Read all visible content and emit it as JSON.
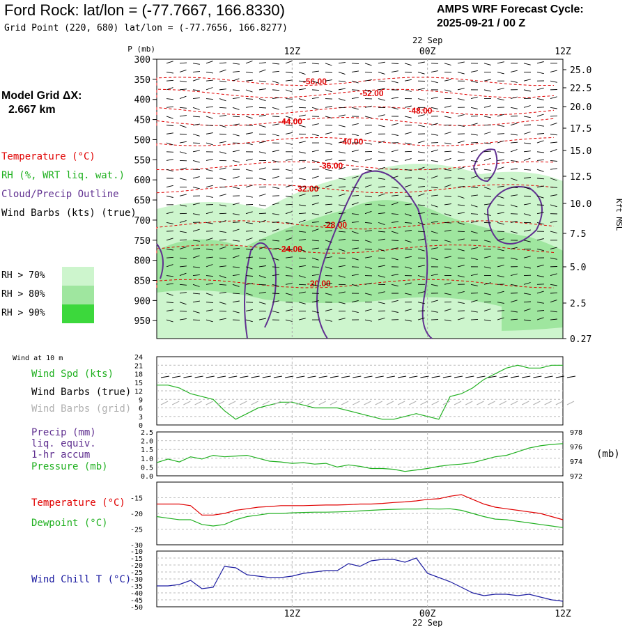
{
  "header": {
    "title": "Ford Rock:  lat/lon = (-77.7667, 166.8330)",
    "grid_point": "Grid Point (220, 680) lat/lon = (-77.7656, 166.8277)",
    "cycle_line1": "AMPS WRF Forecast Cycle:",
    "cycle_line2": "2025-09-21 / 00  Z"
  },
  "sidebar": {
    "model_grid_line1": "Model Grid ΔX:",
    "model_grid_line2": "2.667 km",
    "legend": {
      "temperature": "Temperature (°C)",
      "rh": "RH (%, WRT liq. wat.)",
      "cloud": "Cloud/Precip Outline",
      "wind": "Wind Barbs (kts) (true)"
    },
    "rh_legend": [
      {
        "label": "RH > 70%",
        "color": "#cdf5cd"
      },
      {
        "label": "RH > 80%",
        "color": "#9fe69f"
      },
      {
        "label": "RH > 90%",
        "color": "#3cd83c"
      }
    ]
  },
  "colors": {
    "temperature": "#e00000",
    "rh": "#20b020",
    "cloud": "#603090",
    "wind_chill": "#1a1aa0",
    "grid_barbs": "#b0b0b0"
  },
  "chart_data": [
    {
      "type": "heatmap",
      "name": "cross-section",
      "xlabel_top_date": "22 Sep",
      "x_ticks": [
        "12Z",
        "00Z",
        "12Z"
      ],
      "ylabel": "P (mb)",
      "y_ticks": [
        300,
        350,
        400,
        450,
        500,
        550,
        600,
        650,
        700,
        750,
        800,
        850,
        900,
        950
      ],
      "right_axis_label": "Kft MSL",
      "right_ticks": [
        "25.0",
        "22.5",
        "20.0",
        "17.5",
        "15.0",
        "12.5",
        "10.0",
        "7.5",
        "5.0",
        "2.5",
        "0.27"
      ],
      "temperature_labels": [
        {
          "value": "-56.00",
          "p": 355,
          "t": 0.36
        },
        {
          "value": "-52.00",
          "p": 385,
          "t": 0.5
        },
        {
          "value": "-48.00",
          "p": 428,
          "t": 0.62
        },
        {
          "value": "-44.00",
          "p": 455,
          "t": 0.3
        },
        {
          "value": "-40.00",
          "p": 505,
          "t": 0.45
        },
        {
          "value": "-36.00",
          "p": 565,
          "t": 0.4
        },
        {
          "value": "-32.00",
          "p": 622,
          "t": 0.34
        },
        {
          "value": "-28.00",
          "p": 712,
          "t": 0.41
        },
        {
          "value": "-24.00",
          "p": 772,
          "t": 0.3
        },
        {
          "value": "-20.00",
          "p": 858,
          "t": 0.37
        }
      ]
    },
    {
      "type": "line",
      "name": "wind-10m",
      "panel_label": "Wind at 10 m",
      "label_speed": "Wind Spd (kts)",
      "label_barbs_true": "Wind Barbs (true)",
      "label_barbs_grid": "Wind Barbs (grid)",
      "ylim": [
        0,
        24
      ],
      "y_ticks": [
        24,
        21,
        18,
        15,
        12,
        9,
        6,
        3,
        0
      ],
      "x_hours": [
        0,
        1,
        2,
        3,
        4,
        5,
        6,
        7,
        8,
        9,
        10,
        11,
        12,
        13,
        14,
        15,
        16,
        17,
        18,
        19,
        20,
        21,
        22,
        23,
        24,
        25,
        26,
        27,
        28,
        29,
        30,
        31,
        32,
        33,
        34,
        35,
        36
      ],
      "series": [
        {
          "name": "Wind Spd (kts)",
          "values": [
            14,
            14,
            13,
            11,
            10,
            9,
            5,
            2,
            4,
            6,
            7,
            8,
            8,
            7,
            6,
            6,
            6,
            5,
            4,
            3,
            2,
            2,
            3,
            4,
            3,
            2,
            10,
            11,
            13,
            16,
            18,
            20,
            21,
            20,
            20,
            21,
            21
          ]
        }
      ]
    },
    {
      "type": "line",
      "name": "precip-pressure",
      "label_precip": "Precip (mm)",
      "label_liq": "liq. equiv.",
      "label_accum": "1-hr accum",
      "label_pressure": "Pressure (mb)",
      "right_unit": "(mb)",
      "ylim_precip": [
        0,
        2.5
      ],
      "y_ticks_precip": [
        "2.5",
        "2.0",
        "1.5",
        "1.0",
        "0.5",
        "0.0"
      ],
      "ylim_pressure": [
        972,
        978
      ],
      "y_ticks_pressure": [
        "978",
        "976",
        "974",
        "972"
      ],
      "series": [
        {
          "name": "Pressure (mb)",
          "values": [
            973.8,
            974.3,
            973.9,
            974.6,
            974.3,
            974.8,
            974.6,
            974.7,
            974.8,
            974.4,
            974.0,
            973.9,
            973.7,
            973.8,
            973.6,
            973.7,
            973.2,
            973.5,
            973.3,
            973.0,
            973.0,
            972.9,
            972.6,
            972.8,
            973.0,
            973.3,
            973.5,
            973.6,
            973.8,
            974.2,
            974.6,
            974.8,
            975.3,
            975.8,
            976.1,
            976.3,
            976.4
          ]
        }
      ]
    },
    {
      "type": "line",
      "name": "temp-dewpoint",
      "label_temp": "Temperature (°C)",
      "label_dew": "Dewpoint (°C)",
      "ylim": [
        -30,
        -10
      ],
      "y_ticks": [
        -15,
        -20,
        -25,
        -30
      ],
      "series": [
        {
          "name": "Temperature",
          "values": [
            -17,
            -17,
            -17,
            -17.5,
            -20.5,
            -20.5,
            -20,
            -19,
            -18.5,
            -18,
            -17.8,
            -17.5,
            -17.5,
            -17.5,
            -17.4,
            -17.3,
            -17.3,
            -17.2,
            -17,
            -17,
            -16.8,
            -16.5,
            -16.3,
            -16,
            -15.5,
            -15.3,
            -14.5,
            -14,
            -15.5,
            -17,
            -18,
            -18.5,
            -19,
            -19.5,
            -20,
            -21,
            -22
          ]
        },
        {
          "name": "Dewpoint",
          "values": [
            -21,
            -21.5,
            -22,
            -22,
            -23.5,
            -24,
            -23.5,
            -22,
            -21,
            -20.5,
            -20,
            -20,
            -19.8,
            -19.7,
            -19.6,
            -19.6,
            -19.5,
            -19.4,
            -19.2,
            -19,
            -18.8,
            -18.7,
            -18.6,
            -18.6,
            -18.5,
            -18.6,
            -18.5,
            -19,
            -20,
            -21,
            -21.8,
            -22,
            -22.5,
            -23,
            -23.5,
            -24,
            -24.5
          ]
        }
      ]
    },
    {
      "type": "line",
      "name": "wind-chill",
      "label": "Wind Chill T (°C)",
      "ylim": [
        -50,
        -10
      ],
      "y_ticks": [
        -10,
        -15,
        -20,
        -25,
        -30,
        -35,
        -40,
        -45,
        -50
      ],
      "x_ticks": [
        "12Z",
        "00Z",
        "12Z"
      ],
      "xlabel_date": "22 Sep",
      "series": [
        {
          "name": "Wind Chill",
          "values": [
            -35,
            -35,
            -34,
            -31,
            -37,
            -36,
            -21,
            -22,
            -27,
            -28,
            -29,
            -29,
            -28,
            -26,
            -25,
            -24,
            -24,
            -19,
            -21,
            -17,
            -16,
            -16,
            -18,
            -15,
            -26,
            -29,
            -32,
            -36,
            -40,
            -42,
            -41,
            -41,
            -42,
            -41,
            -43,
            -45,
            -46
          ]
        }
      ]
    }
  ]
}
